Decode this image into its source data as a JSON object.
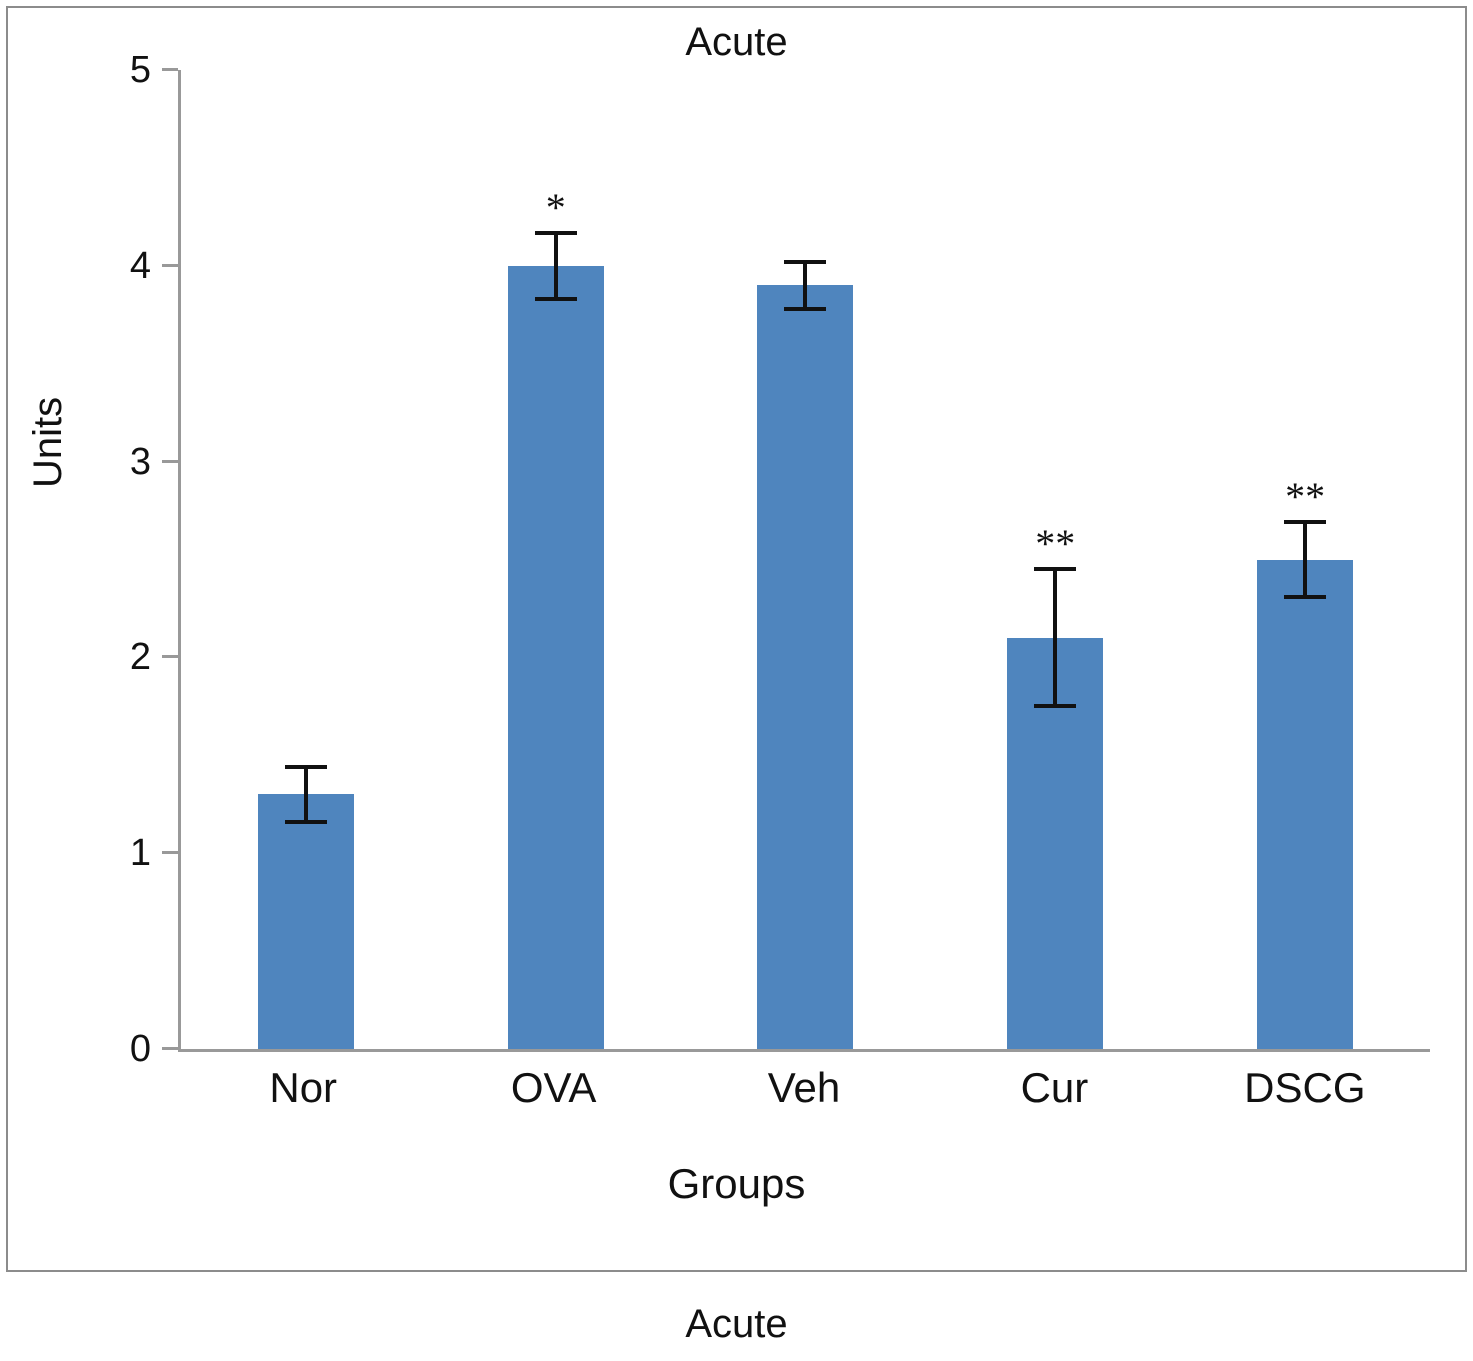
{
  "caption": "Acute",
  "chart_data": {
    "type": "bar",
    "title": "Acute",
    "xlabel": "Groups",
    "ylabel": "Units",
    "categories": [
      "Nor",
      "OVA",
      "Veh",
      "Cur",
      "DSCG"
    ],
    "values": [
      1.3,
      4.0,
      3.9,
      2.1,
      2.5
    ],
    "errors": [
      0.15,
      0.18,
      0.13,
      0.36,
      0.2
    ],
    "annotations": [
      "",
      "*",
      "",
      "**",
      "**"
    ],
    "ylim": [
      0,
      5
    ],
    "yticks": [
      0,
      1,
      2,
      3,
      4,
      5
    ],
    "bar_color": "#4f85be",
    "axis_color": "#999999",
    "grid": false,
    "legend": false
  }
}
